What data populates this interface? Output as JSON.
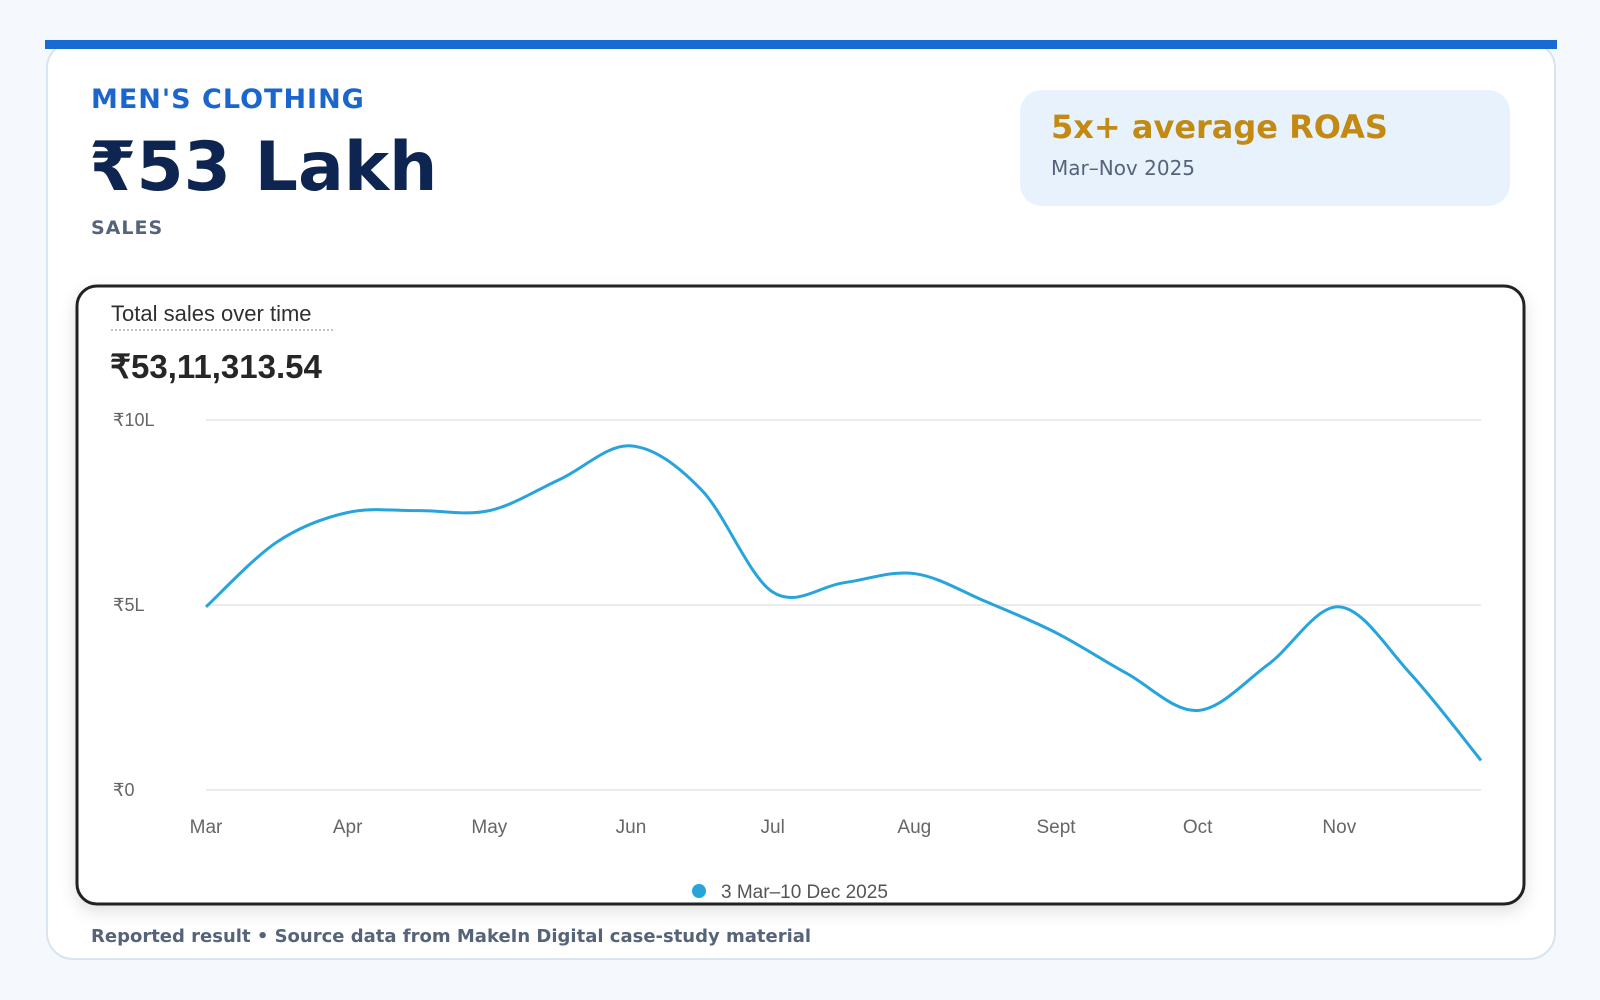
{
  "header": {
    "category": "MEN'S CLOTHING",
    "headline": "₹53 Lakh",
    "metric": "SALES"
  },
  "highlight": {
    "title": "5x+ average ROAS",
    "period": "Mar–Nov 2025"
  },
  "footer": "Reported result • Source data from MakeIn Digital case-study material",
  "chart_data": {
    "type": "line",
    "title": "Total sales over time",
    "subtitle": "₹53,11,313.54",
    "categories": [
      "Mar",
      null,
      "Apr",
      null,
      "May",
      null,
      "Jun",
      null,
      "Jul",
      null,
      "Aug",
      null,
      "Sept",
      null,
      "Oct",
      null,
      "Nov",
      null,
      null
    ],
    "series": [
      {
        "name": "3 Mar–10 Dec 2025",
        "color": "#27a4dc",
        "values": [
          4.95,
          6.7,
          7.5,
          7.55,
          7.55,
          8.4,
          9.3,
          8.1,
          5.35,
          5.6,
          5.85,
          5.1,
          4.25,
          3.15,
          2.15,
          3.4,
          4.95,
          3.15,
          0.8
        ]
      }
    ],
    "ylim": [
      0,
      10
    ],
    "yticks": [
      {
        "value": 0,
        "label": "₹0"
      },
      {
        "value": 5,
        "label": "₹5L"
      },
      {
        "value": 10,
        "label": "₹10L"
      }
    ],
    "grid": true
  }
}
